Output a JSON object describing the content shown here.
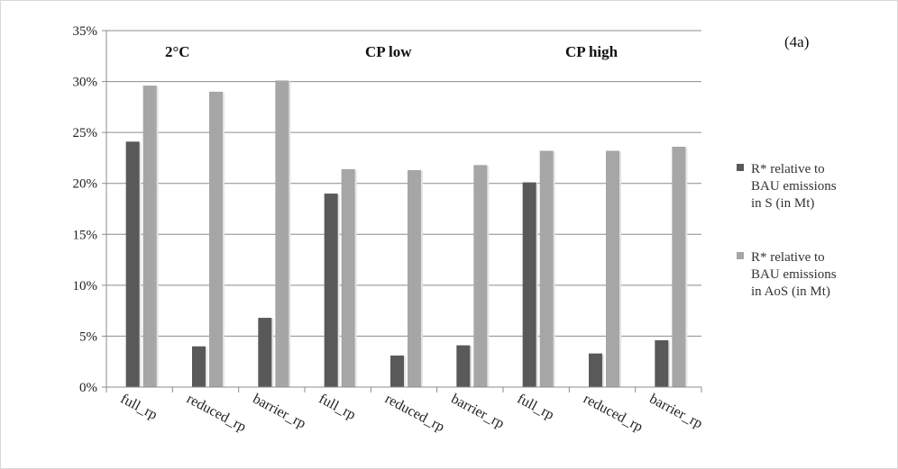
{
  "chart_data": {
    "type": "bar",
    "panel_label": "(4a)",
    "group_labels": [
      "2°C",
      "CP low",
      "CP high"
    ],
    "categories": [
      "full_rp",
      "reduced_rp",
      "barrier_rp",
      "full_rp",
      "reduced_rp",
      "barrier_rp",
      "full_rp",
      "reduced_rp",
      "barrier_rp"
    ],
    "series": [
      {
        "name": "R* relative to BAU emissions in S (in Mt)",
        "legend_lines": [
          "R* relative to",
          "BAU emissions",
          "in S (in Mt)"
        ],
        "color": "#595959",
        "values": [
          24.1,
          4.0,
          6.8,
          19.0,
          3.1,
          4.1,
          20.1,
          3.3,
          4.6
        ]
      },
      {
        "name": "R* relative to BAU emissions in AoS (in Mt)",
        "legend_lines": [
          "R* relative to",
          "BAU emissions",
          "in AoS (in Mt)"
        ],
        "color": "#a6a6a6",
        "values": [
          29.6,
          29.0,
          30.1,
          21.4,
          21.3,
          21.8,
          23.2,
          23.2,
          23.6
        ]
      }
    ],
    "ylim": [
      0,
      35
    ],
    "yticks": [
      0,
      5,
      10,
      15,
      20,
      25,
      30,
      35
    ],
    "ytick_labels": [
      "0%",
      "5%",
      "10%",
      "15%",
      "20%",
      "25%",
      "30%",
      "35%"
    ],
    "grid": true,
    "legend_position": "right"
  }
}
